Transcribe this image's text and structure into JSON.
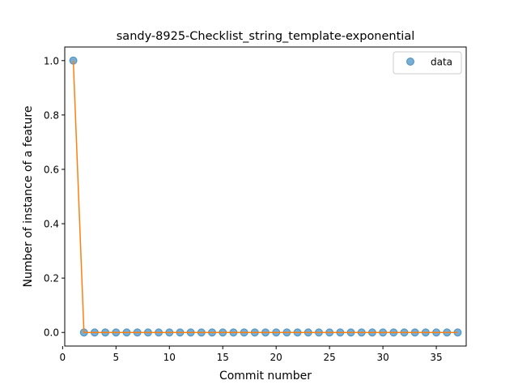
{
  "chart_data": {
    "type": "scatter",
    "title": "sandy-8925-Checklist_string_template-exponential",
    "xlabel": "Commit number",
    "ylabel": "Number of instance of a feature",
    "xlim": [
      0.2,
      37.8
    ],
    "ylim": [
      -0.05,
      1.05
    ],
    "xticks": [
      0,
      5,
      10,
      15,
      20,
      25,
      30,
      35
    ],
    "xtick_labels": [
      "0",
      "5",
      "10",
      "15",
      "20",
      "25",
      "30",
      "35"
    ],
    "yticks": [
      0.0,
      0.2,
      0.4,
      0.6,
      0.8,
      1.0
    ],
    "ytick_labels": [
      "0.0",
      "0.2",
      "0.4",
      "0.6",
      "0.8",
      "1.0"
    ],
    "grid": false,
    "legend_position": "top-right",
    "series": [
      {
        "name": "data",
        "kind": "scatter",
        "color": "#1f77b4",
        "x": [
          1,
          2,
          3,
          4,
          5,
          6,
          7,
          8,
          9,
          10,
          11,
          12,
          13,
          14,
          15,
          16,
          17,
          18,
          19,
          20,
          21,
          22,
          23,
          24,
          25,
          26,
          27,
          28,
          29,
          30,
          31,
          32,
          33,
          34,
          35,
          36,
          37
        ],
        "y": [
          1,
          0,
          0,
          0,
          0,
          0,
          0,
          0,
          0,
          0,
          0,
          0,
          0,
          0,
          0,
          0,
          0,
          0,
          0,
          0,
          0,
          0,
          0,
          0,
          0,
          0,
          0,
          0,
          0,
          0,
          0,
          0,
          0,
          0,
          0,
          0,
          0
        ]
      },
      {
        "kind": "line",
        "color": "#ff7f0e",
        "x": [
          1,
          2,
          3,
          4,
          5,
          6,
          7,
          8,
          9,
          10,
          11,
          12,
          13,
          14,
          15,
          16,
          17,
          18,
          19,
          20,
          21,
          22,
          23,
          24,
          25,
          26,
          27,
          28,
          29,
          30,
          31,
          32,
          33,
          34,
          35,
          36,
          37
        ],
        "y": [
          1,
          0,
          0,
          0,
          0,
          0,
          0,
          0,
          0,
          0,
          0,
          0,
          0,
          0,
          0,
          0,
          0,
          0,
          0,
          0,
          0,
          0,
          0,
          0,
          0,
          0,
          0,
          0,
          0,
          0,
          0,
          0,
          0,
          0,
          0,
          0,
          0
        ]
      }
    ]
  }
}
